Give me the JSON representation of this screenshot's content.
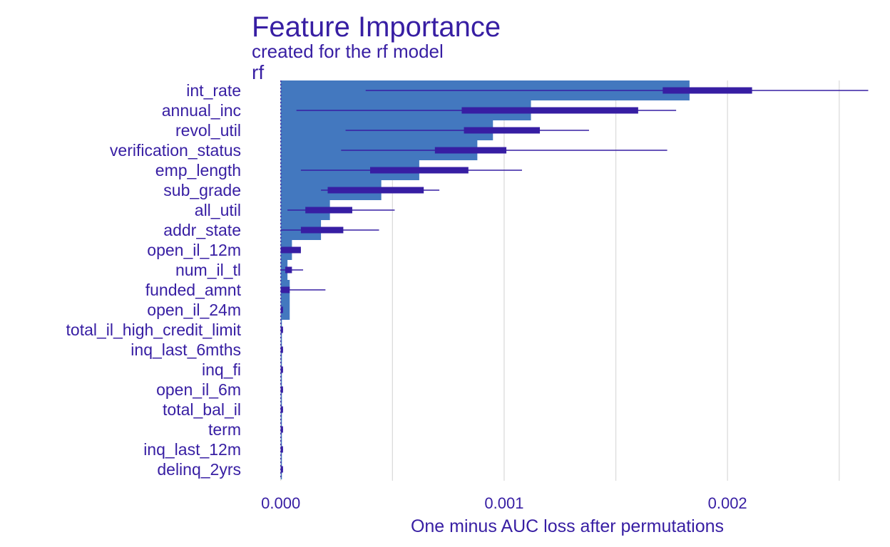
{
  "colors": {
    "text": "#371ea3",
    "bar": "#4378bf",
    "boxplot": "#371ea3",
    "grid": "#dcdcdc"
  },
  "chart_data": {
    "type": "bar",
    "orientation": "horizontal",
    "title": "Feature Importance",
    "subtitle": "created for the rf model",
    "panel_label": "rf",
    "xlabel": "One minus AUC loss after permutations",
    "xlim": [
      -0.00013,
      0.00267
    ],
    "x_ticks": [
      0.0,
      0.001,
      0.002
    ],
    "x_tick_labels": [
      "0.000",
      "0.001",
      "0.002"
    ],
    "baseline": 0.0,
    "grid": "vertical",
    "categories": [
      "int_rate",
      "annual_inc",
      "revol_util",
      "verification_status",
      "emp_length",
      "sub_grade",
      "all_util",
      "addr_state",
      "open_il_12m",
      "num_il_tl",
      "funded_amnt",
      "open_il_24m",
      "total_il_high_credit_limit",
      "inq_last_6mths",
      "inq_fi",
      "open_il_6m",
      "total_bal_il",
      "term",
      "inq_last_12m",
      "delinq_2yrs"
    ],
    "values": [
      0.00183,
      0.00112,
      0.00095,
      0.00088,
      0.00062,
      0.00045,
      0.00022,
      0.00018,
      5e-05,
      3e-05,
      4e-05,
      4e-05,
      5e-06,
      5e-06,
      5e-06,
      5e-06,
      5e-06,
      5e-06,
      5e-06,
      5e-06
    ],
    "boxplots": [
      {
        "min": 0.00038,
        "q1": 0.00171,
        "q3": 0.00211,
        "max": 0.00263
      },
      {
        "min": 7e-05,
        "q1": 0.00081,
        "q3": 0.0016,
        "max": 0.00177
      },
      {
        "min": 0.00029,
        "q1": 0.00082,
        "q3": 0.00116,
        "max": 0.00138
      },
      {
        "min": 0.00027,
        "q1": 0.00069,
        "q3": 0.00101,
        "max": 0.00173
      },
      {
        "min": 9e-05,
        "q1": 0.0004,
        "q3": 0.00084,
        "max": 0.00108
      },
      {
        "min": 0.00018,
        "q1": 0.00021,
        "q3": 0.00064,
        "max": 0.00071
      },
      {
        "min": 3e-05,
        "q1": 0.00011,
        "q3": 0.00032,
        "max": 0.00051
      },
      {
        "min": 0.0,
        "q1": 9e-05,
        "q3": 0.00028,
        "max": 0.00044
      },
      {
        "min": 0.0,
        "q1": 0.0,
        "q3": 9e-05,
        "max": 9e-05
      },
      {
        "min": 0.0,
        "q1": 2e-05,
        "q3": 5e-05,
        "max": 0.0001
      },
      {
        "min": 0.0,
        "q1": 0.0,
        "q3": 4e-05,
        "max": 0.0002
      },
      {
        "min": 0.0,
        "q1": 0.0,
        "q3": 1e-05,
        "max": 1e-05
      },
      {
        "min": 0.0,
        "q1": 0.0,
        "q3": 1e-05,
        "max": 1e-05
      },
      {
        "min": 0.0,
        "q1": 0.0,
        "q3": 1e-05,
        "max": 1e-05
      },
      {
        "min": 0.0,
        "q1": 0.0,
        "q3": 1e-05,
        "max": 1e-05
      },
      {
        "min": 0.0,
        "q1": 0.0,
        "q3": 1e-05,
        "max": 1e-05
      },
      {
        "min": 0.0,
        "q1": 0.0,
        "q3": 1e-05,
        "max": 1e-05
      },
      {
        "min": 0.0,
        "q1": 0.0,
        "q3": 1e-05,
        "max": 1e-05
      },
      {
        "min": 0.0,
        "q1": 0.0,
        "q3": 1e-05,
        "max": 1e-05
      },
      {
        "min": 0.0,
        "q1": 0.0,
        "q3": 1e-05,
        "max": 1e-05
      }
    ]
  }
}
